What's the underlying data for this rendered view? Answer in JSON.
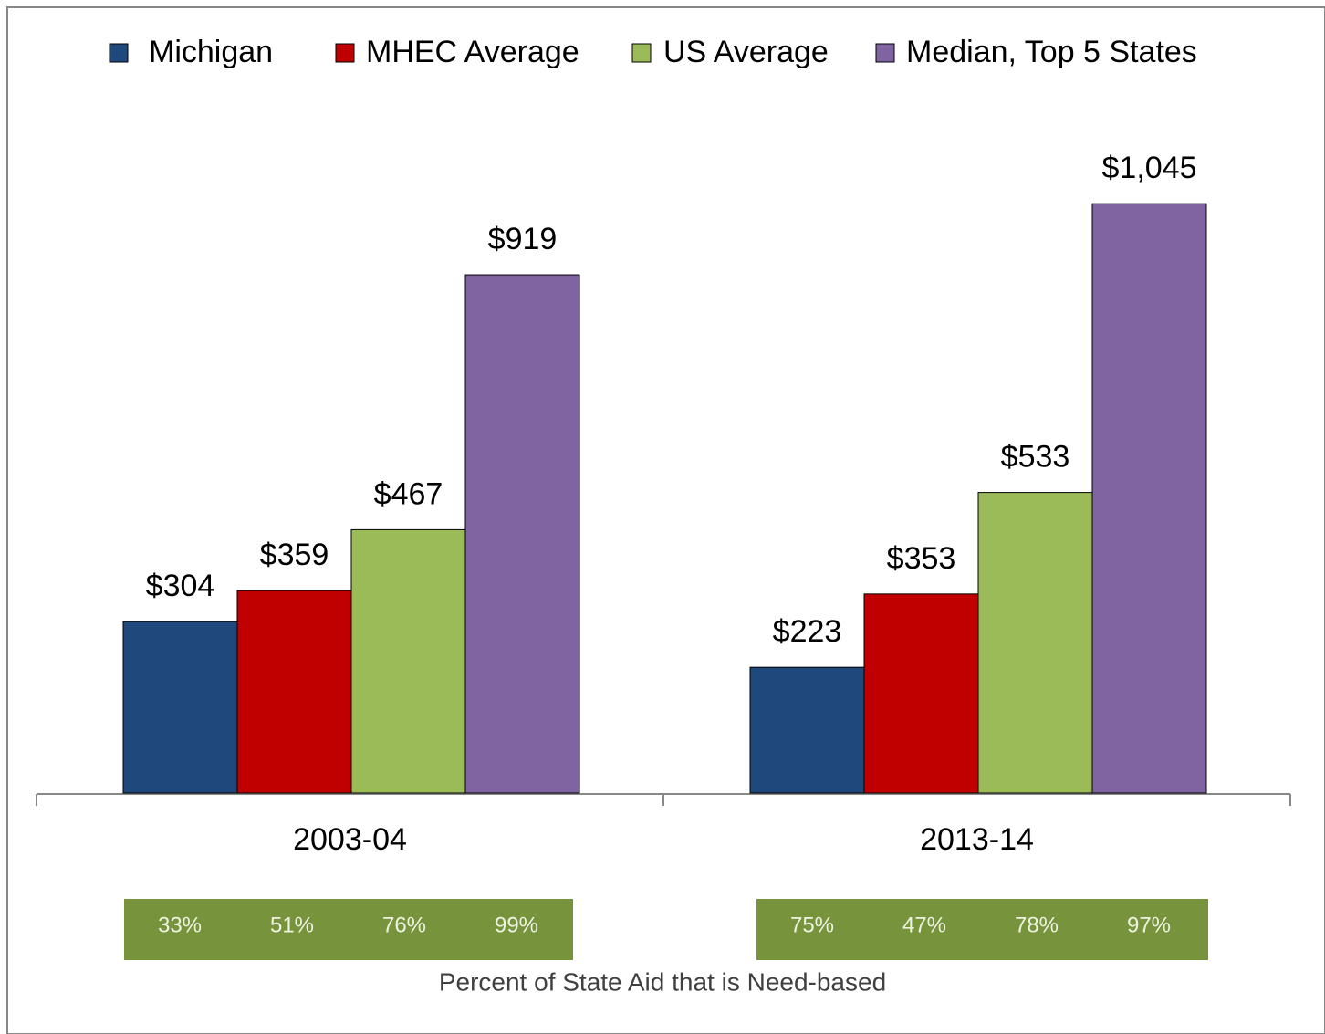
{
  "chart_data": {
    "type": "bar",
    "categories": [
      "2003-04",
      "2013-14"
    ],
    "series": [
      {
        "name": "Michigan",
        "color": "#1f497d",
        "values": [
          304,
          223
        ],
        "value_labels": [
          "$304",
          "$223"
        ]
      },
      {
        "name": "MHEC Average",
        "color": "#c00000",
        "values": [
          359,
          353
        ],
        "value_labels": [
          "$359",
          "$353"
        ]
      },
      {
        "name": "US Average",
        "color": "#9bbb59",
        "values": [
          467,
          533
        ],
        "value_labels": [
          "$467",
          "$533"
        ]
      },
      {
        "name": "Median, Top 5 States",
        "color": "#8064a2",
        "values": [
          919,
          1045
        ],
        "value_labels": [
          "$919",
          "$1,045"
        ]
      }
    ],
    "ylim": [
      0,
      1100
    ],
    "legend": "top",
    "need_based": {
      "title": "Percent of State Aid that is Need-based",
      "color": "#77933c",
      "rows": [
        [
          "33%",
          "51%",
          "76%",
          "99%"
        ],
        [
          "75%",
          "47%",
          "78%",
          "97%"
        ]
      ]
    }
  }
}
